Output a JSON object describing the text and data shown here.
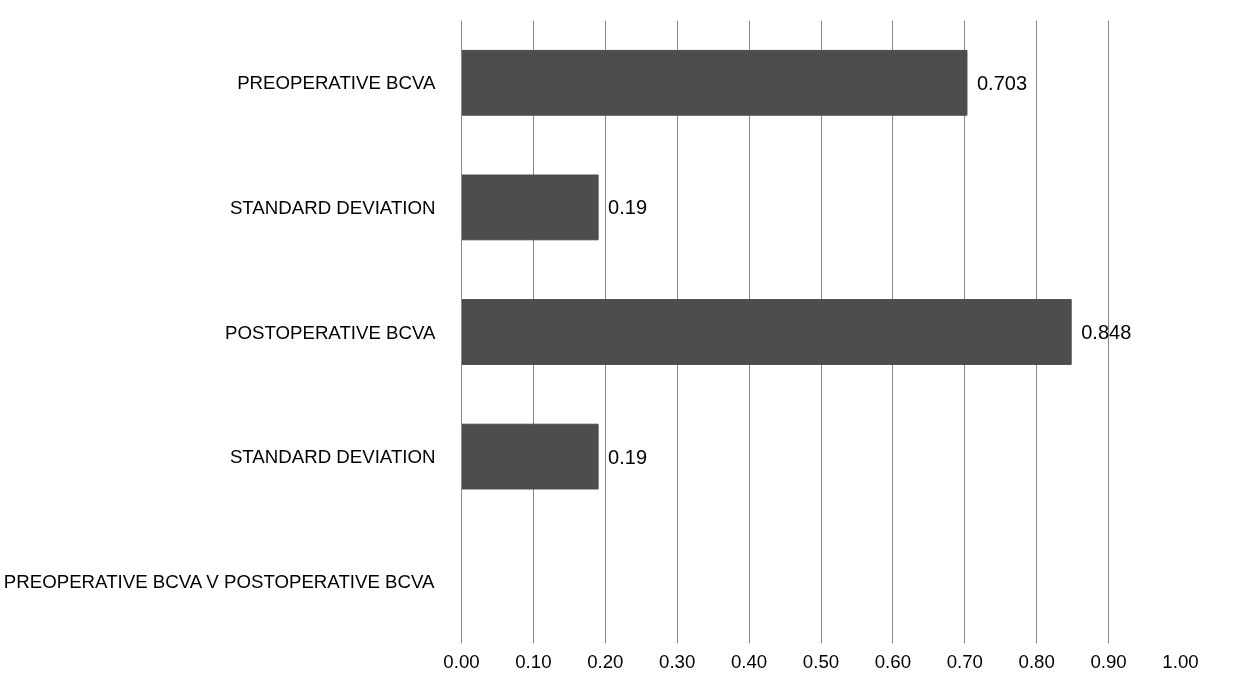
{
  "chart_data": {
    "type": "bar",
    "orientation": "horizontal",
    "categories": [
      "PREOPERATIVE BCVA",
      "STANDARD DEVIATION",
      "POSTOPERATIVE BCVA",
      "STANDARD DEVIATION",
      "PREOPERATIVE BCVA V POSTOPERATIVE BCVA"
    ],
    "values": [
      0.703,
      0.19,
      0.848,
      0.19,
      null
    ],
    "color": "#4d4d4d",
    "xlim": [
      0,
      1
    ],
    "xticks": [
      {
        "value": 0,
        "label": "0.00"
      },
      {
        "value": 0.1,
        "label": "0.10"
      },
      {
        "value": 0.2,
        "label": "0.20"
      },
      {
        "value": 0.3,
        "label": "0.30"
      },
      {
        "value": 0.4,
        "label": "0.40"
      },
      {
        "value": 0.5,
        "label": "0.50"
      },
      {
        "value": 0.6,
        "label": "0.60"
      },
      {
        "value": 0.7,
        "label": "0.70"
      },
      {
        "value": 0.8,
        "label": "0.80"
      },
      {
        "value": 0.9,
        "label": "0.90"
      },
      {
        "value": 1,
        "label": "1.00"
      }
    ],
    "grid": "x",
    "data_labels": true
  }
}
